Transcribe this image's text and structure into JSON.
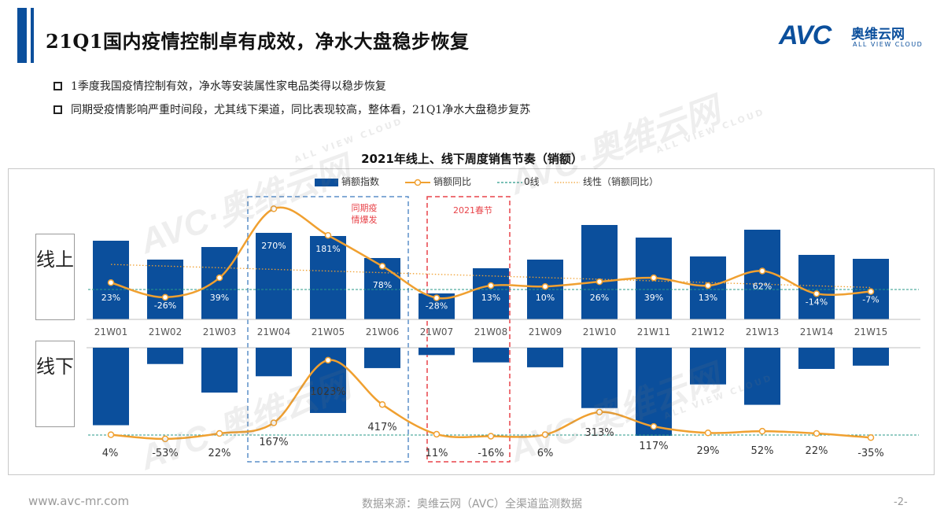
{
  "header": {
    "title": "21Q1国内疫情控制卓有成效，净水大盘稳步恢复",
    "logo_text": "AVC",
    "logo_cn": "奥维云网",
    "logo_en": "ALL VIEW CLOUD"
  },
  "bullets": [
    "1季度我国疫情控制有效，净水等安装属性家电品类得以稳步恢复",
    "同期受疫情影响严重时间段，尤其线下渠道，同比表现较高，整体看，21Q1净水大盘稳步复苏"
  ],
  "chart_data": {
    "type": "bar",
    "title": "2021年线上、线下周度销售节奏（销额）",
    "legend": [
      "销额指数",
      "销额同比",
      "0线",
      "线性（销额同比）"
    ],
    "categories": [
      "21W01",
      "21W02",
      "21W03",
      "21W04",
      "21W05",
      "21W06",
      "21W07",
      "21W08",
      "21W09",
      "21W10",
      "21W11",
      "21W12",
      "21W13",
      "21W14",
      "21W15"
    ],
    "panels": [
      {
        "label": "线上",
        "bar_series": "销额指数",
        "bars": [
          100,
          76,
          92,
          110,
          106,
          78,
          33,
          65,
          76,
          120,
          104,
          80,
          114,
          82,
          77
        ],
        "line_series": "销额同比",
        "yoy_labels": [
          "23%",
          "-26%",
          "39%",
          "270%",
          "181%",
          "78%",
          "-28%",
          "13%",
          "10%",
          "26%",
          "39%",
          "13%",
          "62%",
          "-14%",
          "-7%"
        ],
        "yoy_values": [
          23,
          -26,
          39,
          270,
          181,
          78,
          -28,
          13,
          10,
          26,
          39,
          13,
          62,
          -14,
          -7
        ]
      },
      {
        "label": "线下",
        "bar_series": "销额指数",
        "bars": [
          95,
          20,
          55,
          35,
          80,
          25,
          9,
          18,
          24,
          74,
          108,
          45,
          70,
          26,
          22
        ],
        "line_series": "销额同比",
        "yoy_labels": [
          "4%",
          "-53%",
          "22%",
          "167%",
          "1023%",
          "417%",
          "11%",
          "-16%",
          "6%",
          "313%",
          "117%",
          "29%",
          "52%",
          "22%",
          "-35%"
        ],
        "yoy_values": [
          4,
          -53,
          22,
          167,
          1023,
          417,
          11,
          -16,
          6,
          313,
          117,
          29,
          52,
          22,
          -35
        ]
      }
    ],
    "annotations": [
      {
        "text": "同期疫情爆发",
        "weeks": [
          "21W04",
          "21W06"
        ]
      },
      {
        "text": "2021春节",
        "weeks": [
          "21W07",
          "21W08"
        ]
      }
    ]
  },
  "colors": {
    "bar": "#0b4f9c",
    "line": "#f0a030",
    "zero_line": "#2a9a8a",
    "trend": "#f0a030",
    "covid_box": "#5b8fc9",
    "spring_box": "#e8444a"
  },
  "footer": {
    "website": "www.avc-mr.com",
    "source": "数据来源：奥维云网（AVC）全渠道监测数据",
    "page": "-2-"
  }
}
